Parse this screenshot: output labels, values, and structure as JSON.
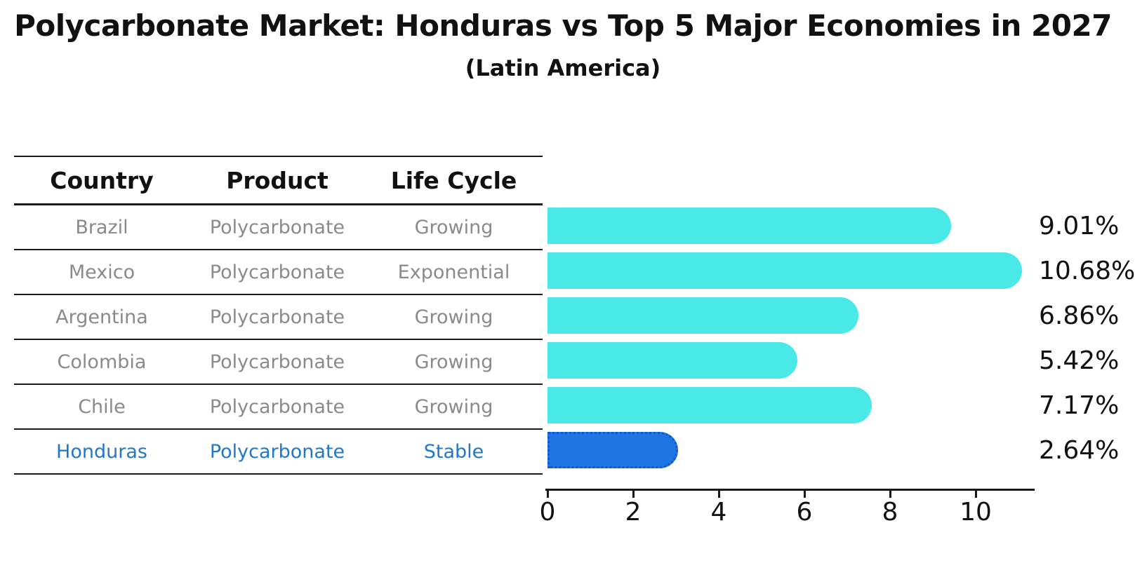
{
  "title": "Polycarbonate Market: Honduras vs Top 5 Major Economies in 2027",
  "subtitle": "(Latin America)",
  "table": {
    "headers": [
      "Country",
      "Product",
      "Life Cycle"
    ]
  },
  "chart_data": {
    "type": "bar",
    "orientation": "horizontal",
    "unit": "%",
    "categories": [
      "Brazil",
      "Mexico",
      "Argentina",
      "Colombia",
      "Chile",
      "Honduras"
    ],
    "values": [
      9.01,
      10.68,
      6.86,
      5.42,
      7.17,
      2.64
    ],
    "value_labels": [
      "9.01%",
      "10.68%",
      "6.86%",
      "5.42%",
      "7.17%",
      "2.64%"
    ],
    "rows": [
      {
        "country": "Brazil",
        "product": "Polycarbonate",
        "life_cycle": "Growing",
        "value": 9.01,
        "label": "9.01%",
        "highlight": false
      },
      {
        "country": "Mexico",
        "product": "Polycarbonate",
        "life_cycle": "Exponential",
        "value": 10.68,
        "label": "10.68%",
        "highlight": false
      },
      {
        "country": "Argentina",
        "product": "Polycarbonate",
        "life_cycle": "Growing",
        "value": 6.86,
        "label": "6.86%",
        "highlight": false
      },
      {
        "country": "Colombia",
        "product": "Polycarbonate",
        "life_cycle": "Growing",
        "value": 5.42,
        "label": "5.42%",
        "highlight": false
      },
      {
        "country": "Chile",
        "product": "Polycarbonate",
        "life_cycle": "Growing",
        "value": 7.17,
        "label": "7.17%",
        "highlight": false
      },
      {
        "country": "Honduras",
        "product": "Polycarbonate",
        "life_cycle": "Stable",
        "value": 2.64,
        "label": "2.64%",
        "highlight": true
      }
    ],
    "xticks": [
      "0",
      "2",
      "4",
      "6",
      "8",
      "10"
    ],
    "xlim": [
      0,
      11.4
    ],
    "highlight_category": "Honduras",
    "grid": false,
    "legend": false,
    "colors": {
      "bar": "#4AE8E6",
      "highlight_bar": "#1E75E3",
      "highlight_border": "#1356C9",
      "highlight_text": "#1F78C9",
      "row_text": "#8A8A8A",
      "header_text": "#111111",
      "axis": "#1A1A1A"
    }
  }
}
